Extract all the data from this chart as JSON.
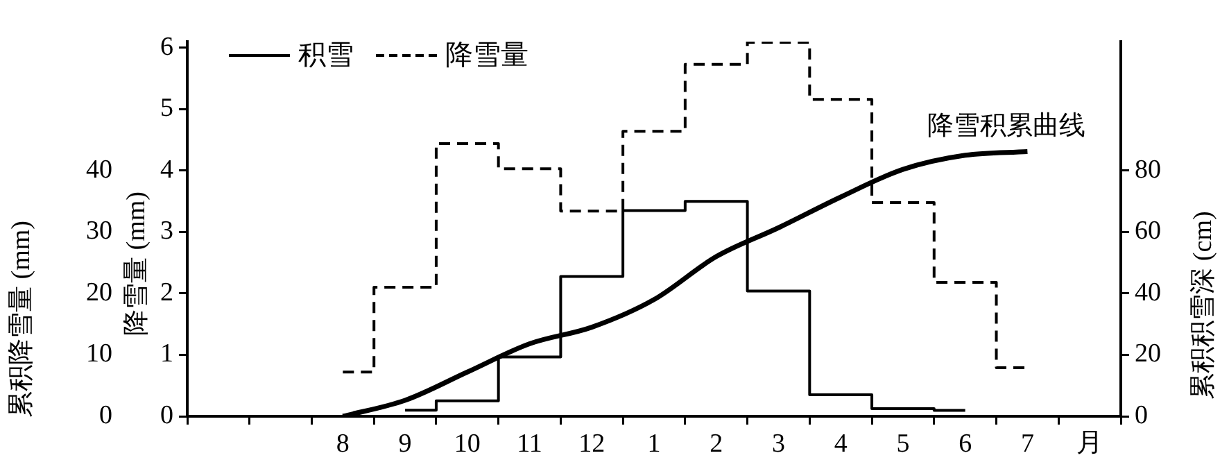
{
  "chart_data": {
    "type": "step",
    "xlabel": "月",
    "ylabel": "降雪量 (mm)",
    "y2label": "累积积雪深 (cm)",
    "y3label": "累积降雪量 (mm)",
    "categories": [
      null,
      null,
      "8",
      "9",
      "10",
      "11",
      "12",
      "1",
      "2",
      "3",
      "4",
      "5",
      "6",
      "7",
      null
    ],
    "series": [
      {
        "name": "积雪",
        "axis": "y2",
        "color": "#000000",
        "line_style": "solid",
        "values": [
          null,
          null,
          null,
          2,
          5,
          19.3,
          45.5,
          67,
          70,
          40.8,
          7,
          2.5,
          1.9,
          null,
          null
        ]
      },
      {
        "name": "降雪量",
        "axis": "y",
        "color": "#000000",
        "line_style": "dashed",
        "values": [
          null,
          null,
          0.72,
          2.1,
          4.44,
          4.03,
          3.34,
          4.64,
          5.73,
          6.09,
          5.16,
          3.48,
          2.18,
          0.79,
          null
        ]
      },
      {
        "name": "降雪积累曲线",
        "type": "line",
        "axis": "y3",
        "color": "#000000",
        "line_style": "solid",
        "values": [
          null,
          null,
          0,
          2.6,
          7.2,
          11.8,
          14.5,
          19,
          26,
          30.7,
          35.7,
          40.2,
          42.5,
          43.1,
          null
        ]
      }
    ],
    "ylim": [
      0,
      6.1
    ],
    "yticks": [
      0,
      1,
      2,
      3,
      4,
      5,
      6
    ],
    "y2lim": [
      0,
      122
    ],
    "y2ticks": [
      0,
      20,
      40,
      60,
      80
    ],
    "y3lim": [
      0,
      61
    ],
    "y3ticks": [
      0,
      10,
      20,
      30,
      40
    ],
    "grid": false,
    "legend": "top left",
    "marker": "none"
  }
}
